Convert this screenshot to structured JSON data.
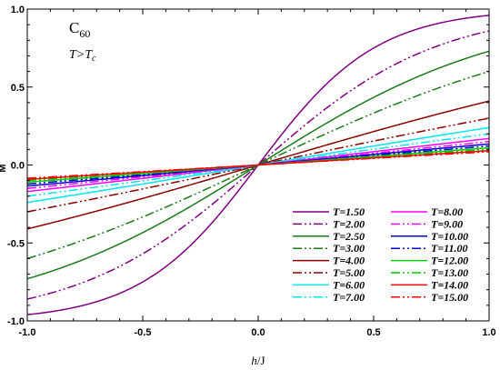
{
  "chart_data": {
    "type": "line",
    "xlabel_var": "h",
    "xlabel_unit": "/J",
    "ylabel": "M",
    "xlim": [
      -1.0,
      1.0
    ],
    "ylim": [
      -1.0,
      1.0
    ],
    "xticks": [
      -1.0,
      -0.5,
      0.0,
      0.5,
      1.0
    ],
    "xtick_labels": [
      "-1.0",
      "-0.5",
      "0.0",
      "0.5",
      "1.0"
    ],
    "yticks": [
      -1.0,
      -0.5,
      0.0,
      0.5,
      1.0
    ],
    "ytick_labels": [
      "-1.0",
      "-0.5",
      "0.0",
      "0.5",
      "1.0"
    ],
    "grid": false,
    "legend_placement": "bottom-right",
    "annotation": {
      "molecule": "C",
      "molecule_sub": "60",
      "condition_main": "T>T",
      "condition_sub": "c"
    },
    "series": [
      {
        "name": "T=1.50",
        "color": "#800080",
        "dash": "solid",
        "m_at_1": 0.96
      },
      {
        "name": "T=2.00",
        "color": "#800080",
        "dash": "dashdotdot",
        "m_at_1": 0.86
      },
      {
        "name": "T=2.50",
        "color": "#1a7a1a",
        "dash": "solid",
        "m_at_1": 0.73
      },
      {
        "name": "T=3.00",
        "color": "#1a7a1a",
        "dash": "dashdotdot",
        "m_at_1": 0.6
      },
      {
        "name": "T=4.00",
        "color": "#8b0000",
        "dash": "solid",
        "m_at_1": 0.41
      },
      {
        "name": "T=5.00",
        "color": "#8b0000",
        "dash": "dashdotdot",
        "m_at_1": 0.3
      },
      {
        "name": "T=6.00",
        "color": "#00e5ee",
        "dash": "solid",
        "m_at_1": 0.24
      },
      {
        "name": "T=7.00",
        "color": "#00e5ee",
        "dash": "dashdotdot",
        "m_at_1": 0.2
      },
      {
        "name": "T=8.00",
        "color": "#ff00ff",
        "dash": "solid",
        "m_at_1": 0.17
      },
      {
        "name": "T=9.00",
        "color": "#ff00ff",
        "dash": "dashdotdot",
        "m_at_1": 0.15
      },
      {
        "name": "T=10.00",
        "color": "#0000cd",
        "dash": "solid",
        "m_at_1": 0.135
      },
      {
        "name": "T=11.00",
        "color": "#0000cd",
        "dash": "dashdotdot",
        "m_at_1": 0.122
      },
      {
        "name": "T=12.00",
        "color": "#00cc00",
        "dash": "solid",
        "m_at_1": 0.11
      },
      {
        "name": "T=13.00",
        "color": "#00cc00",
        "dash": "dashdotdot",
        "m_at_1": 0.1
      },
      {
        "name": "T=14.00",
        "color": "#ff0000",
        "dash": "solid",
        "m_at_1": 0.092
      },
      {
        "name": "T=15.00",
        "color": "#ff0000",
        "dash": "dashdotdot",
        "m_at_1": 0.085
      }
    ]
  }
}
